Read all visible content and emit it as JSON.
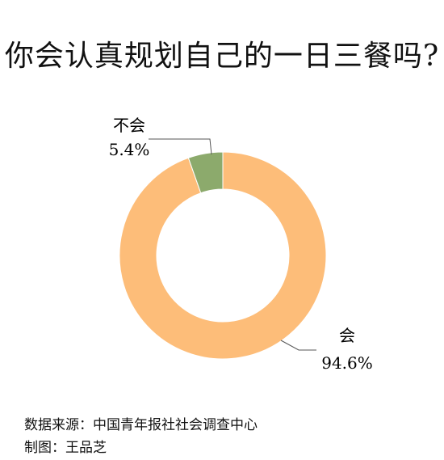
{
  "title": "你会认真规划自己的一日三餐吗?",
  "chart_data": {
    "type": "pie",
    "variant": "donut",
    "title": "你会认真规划自己的一日三餐吗?",
    "slices": [
      {
        "label": "会",
        "value": 94.6,
        "display": "94.6%",
        "color": "#fdbd79"
      },
      {
        "label": "不会",
        "value": 5.4,
        "display": "5.4%",
        "color": "#8caa6c"
      }
    ],
    "legend": "none"
  },
  "footer": {
    "source": "数据来源：中国青年报社社会调查中心",
    "credit": "制图：王品芝"
  }
}
